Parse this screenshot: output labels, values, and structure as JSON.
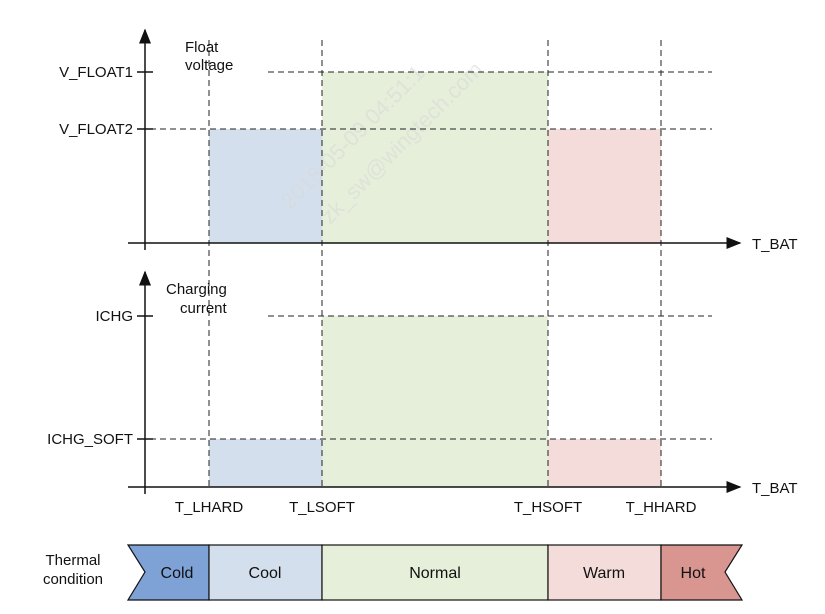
{
  "top_chart": {
    "title_line1": "Float",
    "title_line2": "voltage",
    "level_high": "V_FLOAT1",
    "level_low": "V_FLOAT2",
    "x_axis_label": "T_BAT"
  },
  "bottom_chart": {
    "title_line1": "Charging",
    "title_line2": "current",
    "level_high": "ICHG",
    "level_low": "ICHG_SOFT",
    "x_axis_label": "T_BAT"
  },
  "thresholds": [
    "T_LHARD",
    "T_LSOFT",
    "T_HSOFT",
    "T_HHARD"
  ],
  "thermal": {
    "label_line1": "Thermal",
    "label_line2": "condition",
    "zones": [
      {
        "name": "Cold",
        "color": "#7ea1d6"
      },
      {
        "name": "Cool",
        "color": "#d4dfee"
      },
      {
        "name": "Normal",
        "color": "#e5efd9"
      },
      {
        "name": "Warm",
        "color": "#f4dcdb"
      },
      {
        "name": "Hot",
        "color": "#d99590"
      }
    ]
  },
  "watermark": {
    "line1": "2018-05-09 04:51:1",
    "line2": "zk_sw@wingtech.com"
  },
  "colors": {
    "cool_fill": "#d4dfee",
    "normal_fill": "#e5efd9",
    "warm_fill": "#f4dcdb"
  }
}
